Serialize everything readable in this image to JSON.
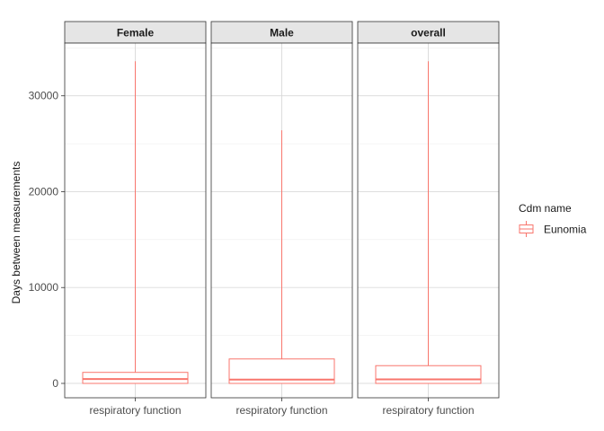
{
  "chart_data": {
    "type": "boxplot",
    "facets": [
      "Female",
      "Male",
      "overall"
    ],
    "categories": [
      "respiratory function"
    ],
    "ylabel": "Days between measurements",
    "xlabel": "",
    "ylim": [
      -1500,
      35500
    ],
    "yticks": [
      0,
      10000,
      20000,
      30000
    ],
    "grid": true,
    "legend": {
      "title": "Cdm name",
      "position": "right",
      "entries": [
        {
          "name": "Eunomia",
          "color": "#f8766d"
        }
      ]
    },
    "series": [
      {
        "name": "Eunomia",
        "color": "#f8766d",
        "boxes": [
          {
            "facet": "Female",
            "category": "respiratory function",
            "min": 0,
            "q1": 0,
            "median": 450,
            "q3": 1150,
            "max": 33600
          },
          {
            "facet": "Male",
            "category": "respiratory function",
            "min": 0,
            "q1": 0,
            "median": 400,
            "q3": 2550,
            "max": 26400
          },
          {
            "facet": "overall",
            "category": "respiratory function",
            "min": 0,
            "q1": 0,
            "median": 420,
            "q3": 1850,
            "max": 33600
          }
        ]
      }
    ]
  }
}
